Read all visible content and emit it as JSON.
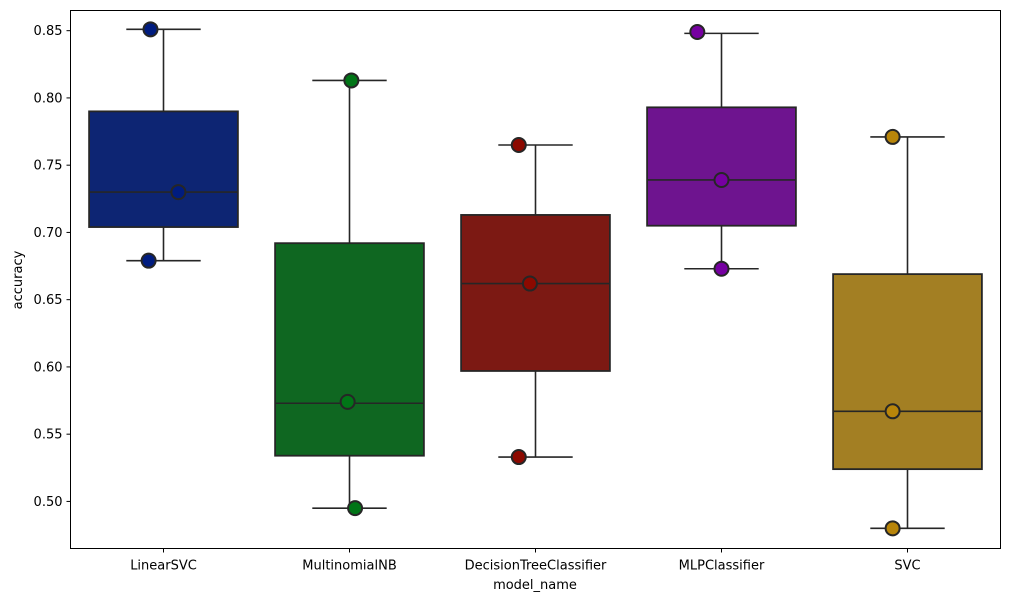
{
  "chart_data": {
    "type": "box",
    "title": "",
    "xlabel": "model_name",
    "ylabel": "accuracy",
    "ylim": [
      0.465,
      0.865
    ],
    "yticks": [
      "0.50",
      "0.55",
      "0.60",
      "0.65",
      "0.70",
      "0.75",
      "0.80",
      "0.85"
    ],
    "ytick_values": [
      0.5,
      0.55,
      0.6,
      0.65,
      0.7,
      0.75,
      0.8,
      0.85
    ],
    "categories": [
      "LinearSVC",
      "MultinomialNB",
      "DecisionTreeClassifier",
      "MLPClassifier",
      "SVC"
    ],
    "boxes": [
      {
        "name": "LinearSVC",
        "color": "#0d2573",
        "whisker_low": 0.679,
        "q1": 0.704,
        "median": 0.73,
        "q3": 0.79,
        "whisker_high": 0.851,
        "points": [
          {
            "x": -0.08,
            "y": 0.679
          },
          {
            "x": 0.08,
            "y": 0.73
          },
          {
            "x": -0.07,
            "y": 0.851
          }
        ]
      },
      {
        "name": "MultinomialNB",
        "color": "#0f6721",
        "whisker_low": 0.495,
        "q1": 0.534,
        "median": 0.573,
        "q3": 0.692,
        "whisker_high": 0.813,
        "points": [
          {
            "x": 0.03,
            "y": 0.495
          },
          {
            "x": -0.01,
            "y": 0.574
          },
          {
            "x": 0.01,
            "y": 0.813
          }
        ]
      },
      {
        "name": "DecisionTreeClassifier",
        "color": "#7c1913",
        "whisker_low": 0.533,
        "q1": 0.597,
        "median": 0.662,
        "q3": 0.713,
        "whisker_high": 0.765,
        "points": [
          {
            "x": -0.09,
            "y": 0.533
          },
          {
            "x": -0.03,
            "y": 0.662
          },
          {
            "x": -0.09,
            "y": 0.765
          }
        ]
      },
      {
        "name": "MLPClassifier",
        "color": "#6e148f",
        "whisker_low": 0.673,
        "q1": 0.705,
        "median": 0.739,
        "q3": 0.793,
        "whisker_high": 0.848,
        "points": [
          {
            "x": 0.0,
            "y": 0.673
          },
          {
            "x": 0.0,
            "y": 0.739
          },
          {
            "x": -0.13,
            "y": 0.849
          }
        ]
      },
      {
        "name": "SVC",
        "color": "#a37f23",
        "whisker_low": 0.48,
        "q1": 0.524,
        "median": 0.567,
        "q3": 0.669,
        "whisker_high": 0.771,
        "points": [
          {
            "x": -0.08,
            "y": 0.48
          },
          {
            "x": -0.08,
            "y": 0.567
          },
          {
            "x": -0.08,
            "y": 0.771
          }
        ]
      }
    ],
    "point_palette": [
      "#001c7f",
      "#017517",
      "#8c0900",
      "#7600a1",
      "#b8850a"
    ],
    "grid": false,
    "legend": "none"
  }
}
